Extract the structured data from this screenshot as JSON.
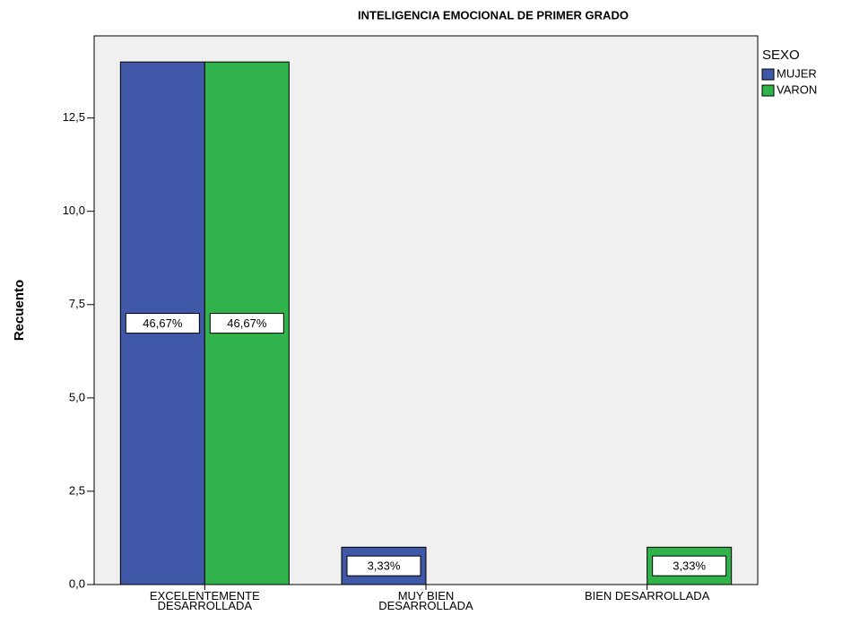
{
  "chart_data": {
    "type": "bar",
    "title": "INTELIGENCIA EMOCIONAL DE PRIMER GRADO",
    "ylabel": "Recuento",
    "categories": [
      [
        "EXCELENTEMENTE",
        "DESARROLLADA"
      ],
      [
        "MUY BIEN",
        "DESARROLLADA"
      ],
      [
        "BIEN DESARROLLADA"
      ]
    ],
    "legend_title": "SEXO",
    "legend": "right",
    "series": [
      {
        "name": "MUJER",
        "color": "#3f58a8",
        "values": [
          14,
          1,
          null
        ],
        "percent_labels": [
          "46,67%",
          "3,33%",
          null
        ]
      },
      {
        "name": "VARON",
        "color": "#2fb34a",
        "values": [
          14,
          null,
          1
        ],
        "percent_labels": [
          "46,67%",
          null,
          "3,33%"
        ]
      }
    ],
    "ylim": [
      0,
      14.7
    ],
    "yticks": [
      {
        "value": 0,
        "label": "0,0"
      },
      {
        "value": 2.5,
        "label": "2,5"
      },
      {
        "value": 5,
        "label": "5,0"
      },
      {
        "value": 7.5,
        "label": "7,5"
      },
      {
        "value": 10,
        "label": "10,0"
      },
      {
        "value": 12.5,
        "label": "12,5"
      }
    ]
  }
}
